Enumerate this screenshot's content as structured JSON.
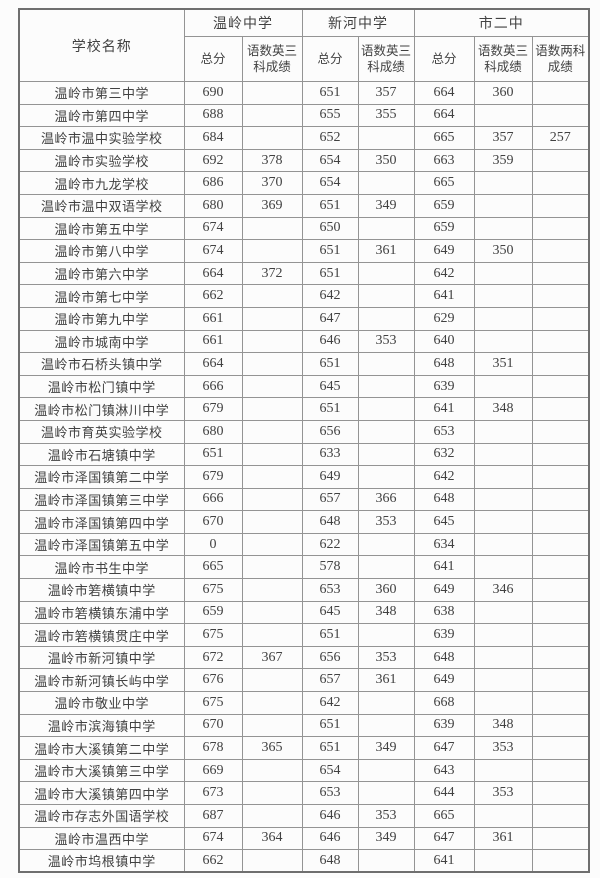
{
  "colors": {
    "text": "#414141",
    "grid_line": "#949494",
    "outer_border": "#6f6f6f",
    "background": "#fcfcfc"
  },
  "table": {
    "name_header": "学校名称",
    "groups": [
      {
        "label": "温岭中学",
        "sub": [
          "总分",
          "语数英三科成绩"
        ]
      },
      {
        "label": "新河中学",
        "sub": [
          "总分",
          "语数英三科成绩"
        ]
      },
      {
        "label": "市二中",
        "sub": [
          "总分",
          "语数英三科成绩",
          "语数两科成绩"
        ]
      }
    ],
    "rows": [
      {
        "school": "温岭市第三中学",
        "scores": [
          "690",
          "",
          "651",
          "357",
          "664",
          "360",
          ""
        ]
      },
      {
        "school": "温岭市第四中学",
        "scores": [
          "688",
          "",
          "655",
          "355",
          "664",
          "",
          ""
        ]
      },
      {
        "school": "温岭市温中实验学校",
        "scores": [
          "684",
          "",
          "652",
          "",
          "665",
          "357",
          "257"
        ]
      },
      {
        "school": "温岭市实验学校",
        "scores": [
          "692",
          "378",
          "654",
          "350",
          "663",
          "359",
          ""
        ]
      },
      {
        "school": "温岭市九龙学校",
        "scores": [
          "686",
          "370",
          "654",
          "",
          "665",
          "",
          ""
        ]
      },
      {
        "school": "温岭市温中双语学校",
        "scores": [
          "680",
          "369",
          "651",
          "349",
          "659",
          "",
          ""
        ]
      },
      {
        "school": "温岭市第五中学",
        "scores": [
          "674",
          "",
          "650",
          "",
          "659",
          "",
          ""
        ]
      },
      {
        "school": "温岭市第八中学",
        "scores": [
          "674",
          "",
          "651",
          "361",
          "649",
          "350",
          ""
        ]
      },
      {
        "school": "温岭市第六中学",
        "scores": [
          "664",
          "372",
          "651",
          "",
          "642",
          "",
          ""
        ]
      },
      {
        "school": "温岭市第七中学",
        "scores": [
          "662",
          "",
          "642",
          "",
          "641",
          "",
          ""
        ]
      },
      {
        "school": "温岭市第九中学",
        "scores": [
          "661",
          "",
          "647",
          "",
          "629",
          "",
          ""
        ]
      },
      {
        "school": "温岭市城南中学",
        "scores": [
          "661",
          "",
          "646",
          "353",
          "640",
          "",
          ""
        ]
      },
      {
        "school": "温岭市石桥头镇中学",
        "scores": [
          "664",
          "",
          "651",
          "",
          "648",
          "351",
          ""
        ]
      },
      {
        "school": "温岭市松门镇中学",
        "scores": [
          "666",
          "",
          "645",
          "",
          "639",
          "",
          ""
        ]
      },
      {
        "school": "温岭市松门镇淋川中学",
        "scores": [
          "679",
          "",
          "651",
          "",
          "641",
          "348",
          ""
        ]
      },
      {
        "school": "温岭市育英实验学校",
        "scores": [
          "680",
          "",
          "656",
          "",
          "653",
          "",
          ""
        ]
      },
      {
        "school": "温岭市石塘镇中学",
        "scores": [
          "651",
          "",
          "633",
          "",
          "632",
          "",
          ""
        ]
      },
      {
        "school": "温岭市泽国镇第二中学",
        "scores": [
          "679",
          "",
          "649",
          "",
          "642",
          "",
          ""
        ]
      },
      {
        "school": "温岭市泽国镇第三中学",
        "scores": [
          "666",
          "",
          "657",
          "366",
          "648",
          "",
          ""
        ]
      },
      {
        "school": "温岭市泽国镇第四中学",
        "scores": [
          "670",
          "",
          "648",
          "353",
          "645",
          "",
          ""
        ]
      },
      {
        "school": "温岭市泽国镇第五中学",
        "scores": [
          "0",
          "",
          "622",
          "",
          "634",
          "",
          ""
        ]
      },
      {
        "school": "温岭市书生中学",
        "scores": [
          "665",
          "",
          "578",
          "",
          "641",
          "",
          ""
        ]
      },
      {
        "school": "温岭市箬横镇中学",
        "scores": [
          "675",
          "",
          "653",
          "360",
          "649",
          "346",
          ""
        ]
      },
      {
        "school": "温岭市箬横镇东浦中学",
        "scores": [
          "659",
          "",
          "645",
          "348",
          "638",
          "",
          ""
        ]
      },
      {
        "school": "温岭市箬横镇贯庄中学",
        "scores": [
          "675",
          "",
          "651",
          "",
          "639",
          "",
          ""
        ]
      },
      {
        "school": "温岭市新河镇中学",
        "scores": [
          "672",
          "367",
          "656",
          "353",
          "648",
          "",
          ""
        ]
      },
      {
        "school": "温岭市新河镇长屿中学",
        "scores": [
          "676",
          "",
          "657",
          "361",
          "649",
          "",
          ""
        ]
      },
      {
        "school": "温岭市敬业中学",
        "scores": [
          "675",
          "",
          "642",
          "",
          "668",
          "",
          ""
        ]
      },
      {
        "school": "温岭市滨海镇中学",
        "scores": [
          "670",
          "",
          "651",
          "",
          "639",
          "348",
          ""
        ]
      },
      {
        "school": "温岭市大溪镇第二中学",
        "scores": [
          "678",
          "365",
          "651",
          "349",
          "647",
          "353",
          ""
        ]
      },
      {
        "school": "温岭市大溪镇第三中学",
        "scores": [
          "669",
          "",
          "654",
          "",
          "643",
          "",
          ""
        ]
      },
      {
        "school": "温岭市大溪镇第四中学",
        "scores": [
          "673",
          "",
          "653",
          "",
          "644",
          "353",
          ""
        ]
      },
      {
        "school": "温岭市存志外国语学校",
        "scores": [
          "687",
          "",
          "646",
          "353",
          "665",
          "",
          ""
        ]
      },
      {
        "school": "温岭市温西中学",
        "scores": [
          "674",
          "364",
          "646",
          "349",
          "647",
          "361",
          ""
        ]
      },
      {
        "school": "温岭市坞根镇中学",
        "scores": [
          "662",
          "",
          "648",
          "",
          "641",
          "",
          ""
        ]
      }
    ]
  }
}
